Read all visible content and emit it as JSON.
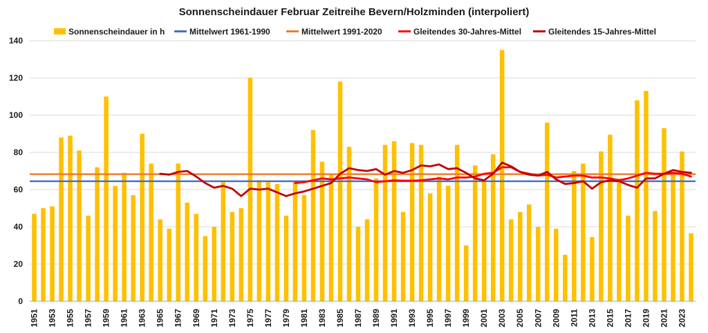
{
  "chart_data": {
    "type": "bar",
    "title": "Sonnenscheindauer Februar Zeitreihe Bevern/Holzminden (interpoliert)",
    "xlabel": "",
    "ylabel": "",
    "ylim": [
      0,
      140
    ],
    "yticks": [
      0,
      20,
      40,
      60,
      80,
      100,
      120,
      140
    ],
    "xtick_labels": [
      "1951",
      "1953",
      "1955",
      "1957",
      "1959",
      "1961",
      "1963",
      "1965",
      "1967",
      "1969",
      "1971",
      "1973",
      "1975",
      "1977",
      "1979",
      "1981",
      "1983",
      "1985",
      "1987",
      "1989",
      "1991",
      "1993",
      "1995",
      "1997",
      "1999",
      "2001",
      "2003",
      "2005",
      "2007",
      "2009",
      "2011",
      "2013",
      "2015",
      "2017",
      "2019",
      "2021",
      "2023"
    ],
    "grid": "horizontal",
    "legend_placement": "top",
    "years": [
      1951,
      1952,
      1953,
      1954,
      1955,
      1956,
      1957,
      1958,
      1959,
      1960,
      1961,
      1962,
      1963,
      1964,
      1965,
      1966,
      1967,
      1968,
      1969,
      1970,
      1971,
      1972,
      1973,
      1974,
      1975,
      1976,
      1977,
      1978,
      1979,
      1980,
      1981,
      1982,
      1983,
      1984,
      1985,
      1986,
      1987,
      1988,
      1989,
      1990,
      1991,
      1992,
      1993,
      1994,
      1995,
      1996,
      1997,
      1998,
      1999,
      2000,
      2001,
      2002,
      2003,
      2004,
      2005,
      2006,
      2007,
      2008,
      2009,
      2010,
      2011,
      2012,
      2013,
      2014,
      2015,
      2016,
      2017,
      2018,
      2019,
      2020,
      2021,
      2022,
      2023,
      2024
    ],
    "bars": {
      "name": "Sonnenscheindauer in h",
      "color": "#FFC000",
      "values": [
        47,
        50,
        51,
        88,
        89,
        81,
        46,
        72,
        110,
        62,
        69,
        57,
        90,
        74,
        44,
        39,
        74,
        53,
        47,
        35,
        40,
        64,
        48,
        50,
        120,
        65,
        64,
        63,
        46,
        64,
        57,
        92,
        75,
        68,
        118,
        83,
        40,
        44,
        66,
        84,
        86,
        48,
        85,
        84,
        58,
        67,
        62,
        84,
        30,
        73,
        65,
        79,
        135,
        44,
        48,
        52,
        40,
        96,
        39,
        25,
        70,
        74,
        34.5,
        80.5,
        89.5,
        66,
        46,
        108,
        113,
        48.5,
        93,
        68,
        80.5,
        36.5
      ]
    },
    "lines": [
      {
        "name": "Mittelwert 1961-1990",
        "color": "#4472C4",
        "kind": "constant",
        "value": 64.5
      },
      {
        "name": "Mittelwert 1991-2020",
        "color": "#ED7D31",
        "kind": "constant",
        "value": 68.3
      },
      {
        "name": "Gleitendes 30-Jahres-Mittel",
        "color": "#FF0000",
        "kind": "series",
        "points": [
          [
            1980,
            63.5
          ],
          [
            1981,
            64
          ],
          [
            1982,
            65
          ],
          [
            1983,
            66
          ],
          [
            1984,
            65.5
          ],
          [
            1985,
            66
          ],
          [
            1986,
            66.5
          ],
          [
            1987,
            66
          ],
          [
            1988,
            65.5
          ],
          [
            1989,
            64
          ],
          [
            1990,
            64.5
          ],
          [
            1991,
            65
          ],
          [
            1992,
            64.8
          ],
          [
            1993,
            64.8
          ],
          [
            1994,
            65
          ],
          [
            1995,
            65.5
          ],
          [
            1996,
            66
          ],
          [
            1997,
            65.5
          ],
          [
            1998,
            66.5
          ],
          [
            1999,
            66.5
          ],
          [
            2000,
            67
          ],
          [
            2001,
            68.5
          ],
          [
            2002,
            69
          ],
          [
            2003,
            72
          ],
          [
            2004,
            72
          ],
          [
            2005,
            69.5
          ],
          [
            2006,
            68.5
          ],
          [
            2007,
            67.5
          ],
          [
            2008,
            68
          ],
          [
            2009,
            66.5
          ],
          [
            2010,
            67
          ],
          [
            2011,
            67.5
          ],
          [
            2012,
            67.5
          ],
          [
            2013,
            66.5
          ],
          [
            2014,
            66.5
          ],
          [
            2015,
            66
          ],
          [
            2016,
            65
          ],
          [
            2017,
            66
          ],
          [
            2018,
            67.5
          ],
          [
            2019,
            69
          ],
          [
            2020,
            68.5
          ],
          [
            2021,
            68.5
          ],
          [
            2022,
            69
          ],
          [
            2023,
            68.5
          ],
          [
            2024,
            67
          ]
        ]
      },
      {
        "name": "Gleitendes 15-Jahres-Mittel",
        "color": "#C00000",
        "kind": "series",
        "points": [
          [
            1965,
            68.5
          ],
          [
            1966,
            68
          ],
          [
            1967,
            69.5
          ],
          [
            1968,
            70
          ],
          [
            1969,
            67
          ],
          [
            1970,
            63.5
          ],
          [
            1971,
            61
          ],
          [
            1972,
            62
          ],
          [
            1973,
            60.5
          ],
          [
            1974,
            56.5
          ],
          [
            1975,
            60.5
          ],
          [
            1976,
            60
          ],
          [
            1977,
            60.5
          ],
          [
            1978,
            58.5
          ],
          [
            1979,
            56.5
          ],
          [
            1980,
            58
          ],
          [
            1981,
            59
          ],
          [
            1982,
            60.5
          ],
          [
            1983,
            62
          ],
          [
            1984,
            63.5
          ],
          [
            1985,
            68.5
          ],
          [
            1986,
            71.5
          ],
          [
            1987,
            70.5
          ],
          [
            1988,
            70
          ],
          [
            1989,
            71
          ],
          [
            1990,
            68
          ],
          [
            1991,
            70
          ],
          [
            1992,
            69
          ],
          [
            1993,
            70.5
          ],
          [
            1994,
            73
          ],
          [
            1995,
            72.5
          ],
          [
            1996,
            73.5
          ],
          [
            1997,
            71
          ],
          [
            1998,
            71.5
          ],
          [
            1999,
            69
          ],
          [
            2000,
            66
          ],
          [
            2001,
            65
          ],
          [
            2002,
            68.5
          ],
          [
            2003,
            74.5
          ],
          [
            2004,
            72.5
          ],
          [
            2005,
            69.5
          ],
          [
            2006,
            68
          ],
          [
            2007,
            67.5
          ],
          [
            2008,
            69.5
          ],
          [
            2009,
            65.5
          ],
          [
            2010,
            63
          ],
          [
            2011,
            63.5
          ],
          [
            2012,
            64.5
          ],
          [
            2013,
            60.5
          ],
          [
            2014,
            64
          ],
          [
            2015,
            65
          ],
          [
            2016,
            64.5
          ],
          [
            2017,
            62.5
          ],
          [
            2018,
            61
          ],
          [
            2019,
            66
          ],
          [
            2020,
            66
          ],
          [
            2021,
            68.5
          ],
          [
            2022,
            70.5
          ],
          [
            2023,
            69.5
          ],
          [
            2024,
            69
          ]
        ]
      }
    ]
  }
}
